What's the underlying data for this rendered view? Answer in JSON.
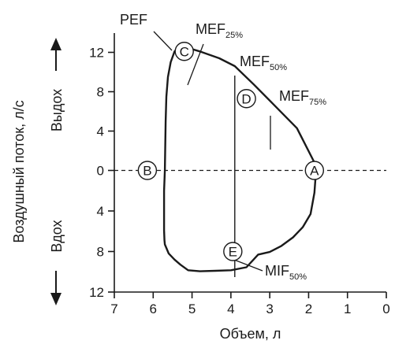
{
  "chart_data": {
    "type": "line",
    "xlabel": "Объем, л",
    "ylabel": "Воздушный поток, л/с",
    "xlim": [
      7,
      0
    ],
    "ylim": [
      -12,
      13.5
    ],
    "x_reversed": true,
    "x_ticks": [
      7,
      6,
      5,
      4,
      3,
      2,
      1,
      0
    ],
    "y_ticks": [
      {
        "value": 12,
        "label": "12"
      },
      {
        "value": 8,
        "label": "8"
      },
      {
        "value": 4,
        "label": "4"
      },
      {
        "value": 0,
        "label": "0"
      },
      {
        "value": -4,
        "label": "4"
      },
      {
        "value": -8,
        "label": "8"
      },
      {
        "value": -12,
        "label": "12"
      }
    ],
    "y_region_labels": {
      "expiration": "Выдох",
      "inspiration": "Вдох"
    },
    "series": [
      {
        "name": "",
        "x": [
          1.8,
          1.85,
          2.3,
          2.9,
          3.4,
          3.9,
          4.3,
          4.8,
          5.1,
          5.3,
          5.45,
          5.55,
          5.62,
          5.66,
          5.68,
          5.69,
          5.7,
          5.72,
          5.72,
          5.72,
          5.71,
          5.7,
          5.6,
          5.45,
          5.3,
          5.1,
          4.8,
          4.4,
          4.0,
          3.6,
          3.3,
          3.0,
          2.7,
          2.4,
          2.15,
          1.95,
          1.85,
          1.82,
          1.8
        ],
        "y": [
          0.0,
          0.8,
          4.3,
          6.7,
          8.7,
          10.6,
          11.4,
          12.1,
          12.45,
          12.7,
          12.1,
          11.0,
          9.5,
          7.5,
          5.0,
          2.5,
          0.0,
          -2.0,
          -4.0,
          -5.9,
          -6.9,
          -7.3,
          -8.2,
          -8.8,
          -9.3,
          -9.85,
          -9.95,
          -9.9,
          -9.85,
          -9.55,
          -8.3,
          -8.05,
          -7.45,
          -6.6,
          -5.6,
          -4.3,
          -2.2,
          -0.6,
          0.0
        ]
      }
    ],
    "points": [
      {
        "label": "A",
        "x": 1.85,
        "y": 0.0
      },
      {
        "label": "B",
        "x": 6.15,
        "y": 0.0
      },
      {
        "label": "C",
        "x": 5.2,
        "y": 12.1
      },
      {
        "label": "D",
        "x": 3.6,
        "y": 7.3
      },
      {
        "label": "E",
        "x": 3.95,
        "y": -8.0
      }
    ],
    "annotations": [
      {
        "main": "PEF",
        "sub": ""
      },
      {
        "main": "MEF",
        "sub": "25%"
      },
      {
        "main": "MEF",
        "sub": "50%"
      },
      {
        "main": "MEF",
        "sub": "75%"
      },
      {
        "main": "MIF",
        "sub": "50%"
      }
    ]
  }
}
